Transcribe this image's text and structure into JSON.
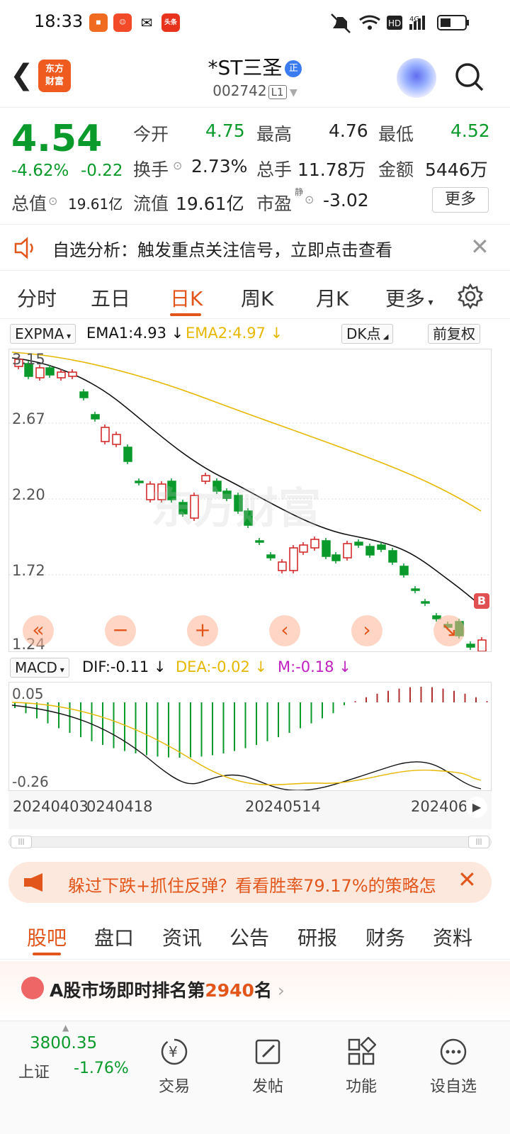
{
  "status_bar": {
    "time": "18:33",
    "icons": [
      "app-icon-1",
      "app-icon-2",
      "wechat-icon",
      "toutiao-icon"
    ],
    "right_icons": [
      "mute-icon",
      "wifi-icon",
      "hd-icon",
      "signal-icon",
      "battery-icon"
    ],
    "hd_label": "HD",
    "net_label": "4G",
    "app_labels": [
      "",
      "",
      "",
      "头条"
    ]
  },
  "header": {
    "back_icon": "back-arrow-icon",
    "logo_line1": "东方",
    "logo_line2": "财富",
    "title": "*ST三圣",
    "title_tag": "正",
    "code": "002742",
    "level": "L1"
  },
  "quote": {
    "price": "4.54",
    "change_pct": "-4.62%",
    "change": "-0.22",
    "open_label": "今开",
    "open": "4.75",
    "high_label": "最高",
    "high": "4.76",
    "low_label": "最低",
    "low": "4.52",
    "turnover_label": "换手",
    "turnover": "2.73%",
    "volume_label": "总手",
    "volume": "11.78万",
    "amount_label": "金额",
    "amount": "5446万",
    "mcap_label": "总值",
    "mcap": "19.61亿",
    "float_label": "流值",
    "float": "19.61亿",
    "pe_label": "市盈",
    "pe_sup": "静",
    "pe": "-3.02",
    "more": "更多"
  },
  "notice": {
    "text": "自选分析：触发重点关注信号，立即点击查看"
  },
  "chart_tabs": [
    "分时",
    "五日",
    "日K",
    "周K",
    "月K",
    "更多"
  ],
  "active_chart_tab": "日K",
  "kline": {
    "indicator": "EXPMA",
    "ema1": "EMA1:4.93",
    "ema2": "EMA2:4.97",
    "dk": "DK点",
    "fq": "前复权",
    "ylabels": [
      "3.15",
      "2.67",
      "2.20",
      "1.72",
      "1.24"
    ],
    "marker": "B",
    "watermark": "东方财富"
  },
  "macd": {
    "indicator": "MACD",
    "dif": "DIF:-0.11",
    "dea": "DEA:-0.02",
    "m": "M:-0.18",
    "ylabels": [
      "0.05",
      "-0.26"
    ]
  },
  "dates": [
    "20240403",
    "0240418",
    "20240514",
    "202406"
  ],
  "banner": {
    "text": "躲过下跌+抓住反弹？看看胜率79.17%的策略怎"
  },
  "bottom_tabs": [
    "股吧",
    "盘口",
    "资讯",
    "公告",
    "研报",
    "财务",
    "资料"
  ],
  "active_bottom_tab": "股吧",
  "rank": {
    "prefix": "A股市场即时排名第",
    "number": "2940",
    "suffix": "名"
  },
  "nav": {
    "index_value": "3800.35",
    "index_name": "上证",
    "index_change": "-1.76%",
    "items": [
      "交易",
      "发帖",
      "功能",
      "设自选"
    ]
  },
  "colors": {
    "up": "#d02020",
    "down": "#0a9a2c",
    "accent": "#e3561b",
    "ema1": "#111111",
    "ema2": "#e6b800"
  }
}
